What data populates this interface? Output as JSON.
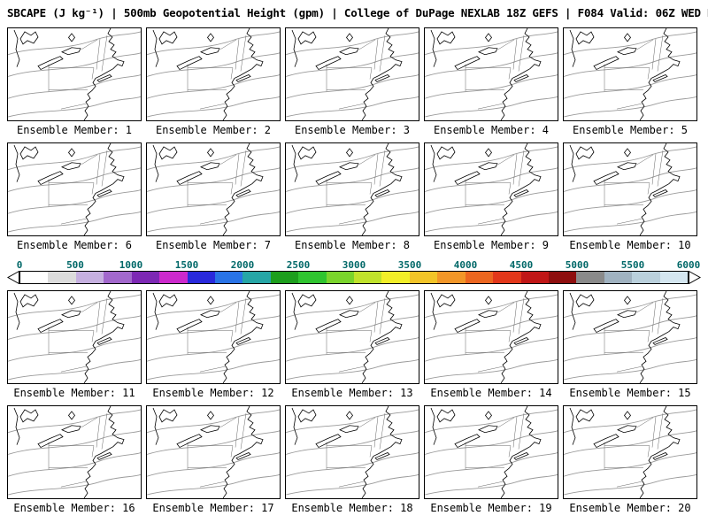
{
  "header": {
    "title": "SBCAPE (J kg⁻¹) | 500mb Geopotential Height (gpm) | College of DuPage NEXLAB 18Z GEFS | F084 Valid: 06Z WED NOV 19 2025"
  },
  "panels": {
    "label_prefix": "Ensemble Member:",
    "members": [
      1,
      2,
      3,
      4,
      5,
      6,
      7,
      8,
      9,
      10,
      11,
      12,
      13,
      14,
      15,
      16,
      17,
      18,
      19,
      20
    ],
    "per_row": 5
  },
  "colorbar": {
    "unit_min": 0,
    "unit_max": 6000,
    "ticks": [
      0,
      500,
      1000,
      1500,
      2000,
      2500,
      3000,
      3500,
      4000,
      4500,
      5000,
      5500,
      6000
    ],
    "tick_color": "#006868",
    "segment_size": 250,
    "segments": [
      "#ffffff",
      "#dcdcdc",
      "#c6b0e0",
      "#a268cc",
      "#7d28b4",
      "#cc29cc",
      "#2929dc",
      "#2973e6",
      "#26a6a6",
      "#1d9e1d",
      "#2fc42f",
      "#7ad42c",
      "#c0e22c",
      "#f2ee28",
      "#f2c428",
      "#f29628",
      "#ec6620",
      "#e2371a",
      "#c01616",
      "#8e0e0e",
      "#8a8a8a",
      "#a0b2c0",
      "#bad0dc",
      "#d4e6f0"
    ]
  },
  "map_style": {
    "coast_color": "#000000",
    "border_color": "#000000",
    "contour_color": "#9a9a9a",
    "state_line_color": "#666666"
  }
}
